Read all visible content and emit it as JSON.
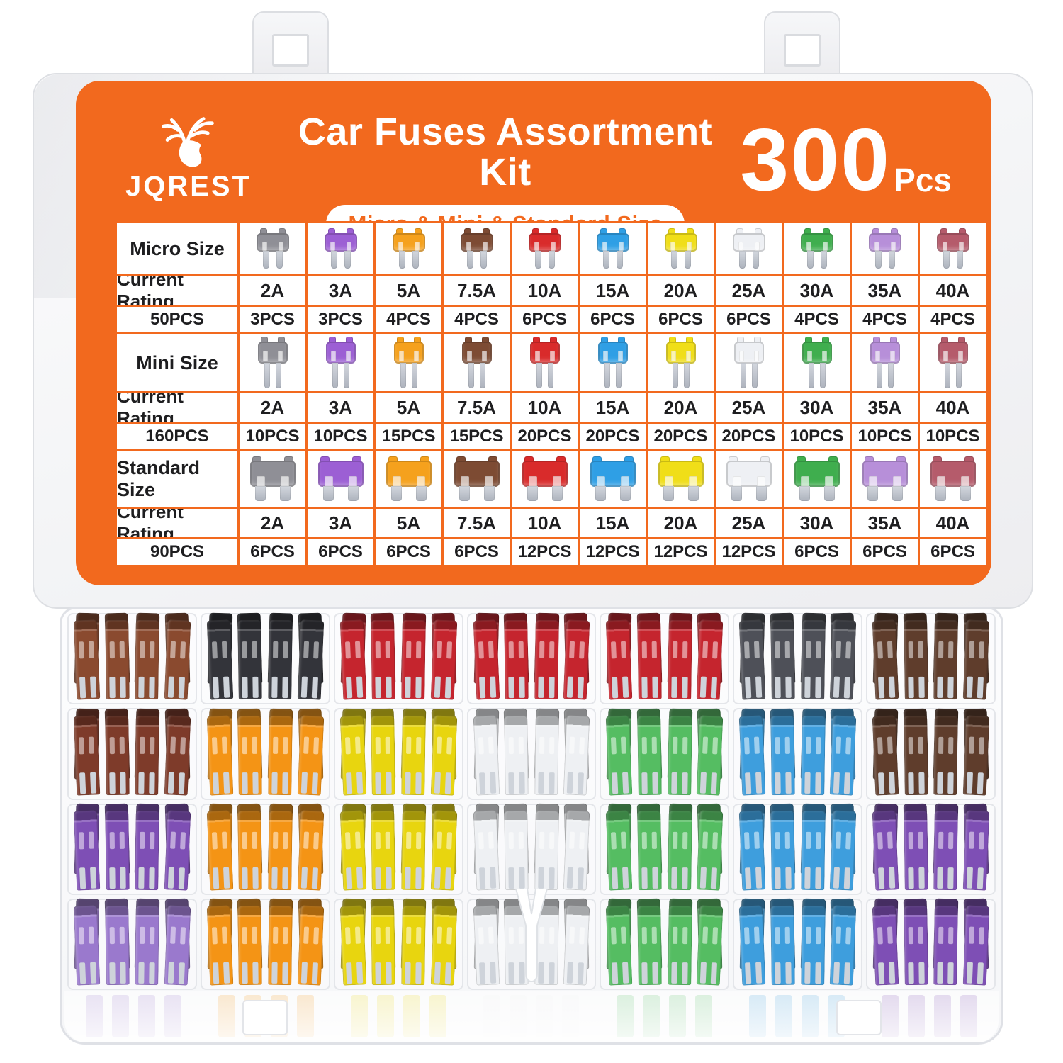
{
  "product": {
    "brand": "JQREST",
    "title": "Car Fuses Assortment Kit",
    "subtitle": "Micro & Mini & Standard Size",
    "count_value": "300",
    "count_unit": "Pcs"
  },
  "table": {
    "ratings": [
      "2A",
      "3A",
      "5A",
      "7.5A",
      "10A",
      "15A",
      "20A",
      "25A",
      "30A",
      "35A",
      "40A"
    ],
    "rating_colors": [
      "#8f8f96",
      "#9c5fd4",
      "#f5a11d",
      "#7d4b33",
      "#d92b2b",
      "#2f9fe5",
      "#f0de18",
      "#eef0f4",
      "#3fae4e",
      "#b78fd9",
      "#b55b6b"
    ],
    "sizes": [
      {
        "size_label": "Micro Size",
        "rating_label": "Current Rating",
        "total_label": "50PCS",
        "icon_style": "micro",
        "counts": [
          "3PCS",
          "3PCS",
          "4PCS",
          "4PCS",
          "6PCS",
          "6PCS",
          "6PCS",
          "6PCS",
          "4PCS",
          "4PCS",
          "4PCS"
        ]
      },
      {
        "size_label": "Mini Size",
        "rating_label": "Current Rating",
        "total_label": "160PCS",
        "icon_style": "mini",
        "counts": [
          "10PCS",
          "10PCS",
          "15PCS",
          "15PCS",
          "20PCS",
          "20PCS",
          "20PCS",
          "20PCS",
          "10PCS",
          "10PCS",
          "10PCS"
        ]
      },
      {
        "size_label": "Standard Size",
        "rating_label": "Current  Rating",
        "total_label": "90PCS",
        "icon_style": "standard",
        "counts": [
          "6PCS",
          "6PCS",
          "6PCS",
          "6PCS",
          "12PCS",
          "12PCS",
          "12PCS",
          "12PCS",
          "6PCS",
          "6PCS",
          "6PCS"
        ]
      }
    ]
  },
  "box": {
    "palette": {
      "brown": "#8a4a2f",
      "black": "#33343a",
      "red": "#c5252e",
      "gray": "#4e5058",
      "darkbrown": "#5f3d2c",
      "maroon": "#7e3b2a",
      "orange": "#f49415",
      "yellow": "#e8d50f",
      "white": "#eef0f3",
      "green": "#55bd62",
      "blue": "#3e9edd",
      "purple": "#7e4fb5",
      "lightpurple": "#9a79cd"
    },
    "rows": [
      [
        "brown",
        "black",
        "red",
        "red",
        "red",
        "gray",
        "darkbrown"
      ],
      [
        "maroon",
        "orange",
        "yellow",
        "white",
        "green",
        "blue",
        "darkbrown"
      ],
      [
        "purple",
        "orange",
        "yellow",
        "white",
        "green",
        "blue",
        "purple"
      ],
      [
        "lightpurple",
        "orange",
        "yellow",
        "white",
        "green",
        "blue",
        "purple"
      ]
    ],
    "puller_cell": {
      "row": 3,
      "col": 3
    }
  },
  "colors": {
    "accent_orange": "#F2691E",
    "text_dark": "#1e1e20",
    "leg_gray": "#ced3da"
  }
}
